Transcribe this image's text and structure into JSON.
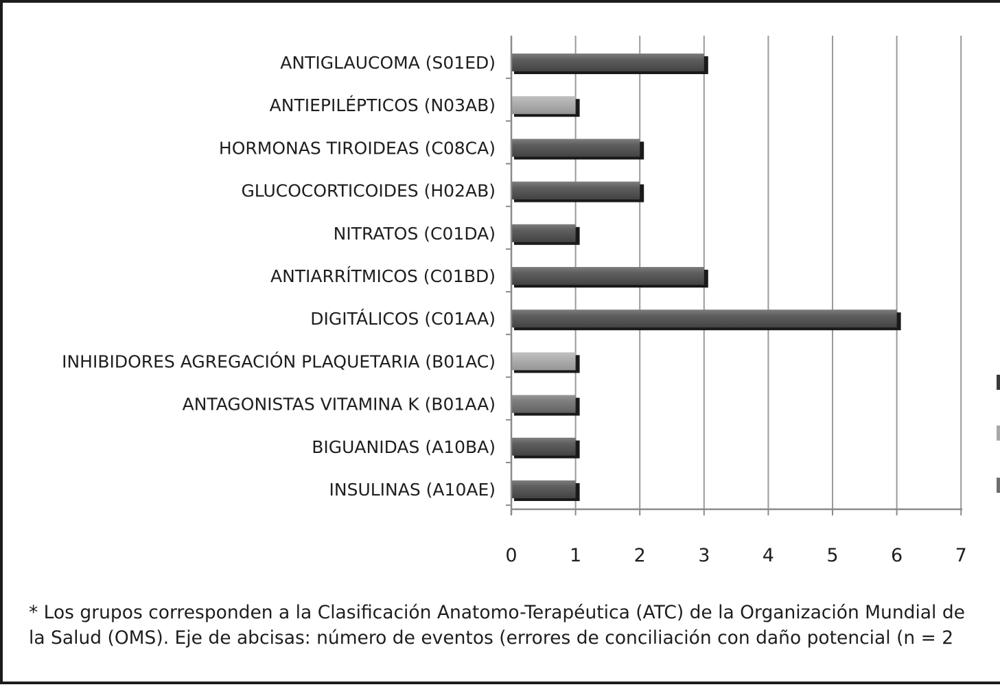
{
  "chart_data": {
    "type": "bar",
    "orientation": "horizontal",
    "categories": [
      "ANTIGLAUCOMA (S01ED)",
      "ANTIEPILÉPTICOS (N03AB)",
      "HORMONAS TIROIDEAS (C08CA)",
      "GLUCOCORTICOIDES (H02AB)",
      "NITRATOS (C01DA)",
      "ANTIARRÍTMICOS (C01BD)",
      "DIGITÁLICOS (C01AA)",
      "INHIBIDORES AGREGACIÓN PLAQUETARIA (B01AC)",
      "ANTAGONISTAS VITAMINA K (B01AA)",
      "BIGUANIDAS (A10BA)",
      "INSULINAS (A10AE)"
    ],
    "values": [
      3,
      1,
      2,
      2,
      1,
      3,
      6,
      1,
      1,
      1,
      1
    ],
    "bar_colors": [
      "#4b4b4b",
      "#a8a8a8",
      "#4b4b4b",
      "#4b4b4b",
      "#4b4b4b",
      "#4b4b4b",
      "#4b4b4b",
      "#a8a8a8",
      "#6e6e6e",
      "#4b4b4b",
      "#4b4b4b"
    ],
    "xlim": [
      0,
      7
    ],
    "xticks": [
      "0",
      "1",
      "2",
      "3",
      "4",
      "5",
      "6",
      "7"
    ],
    "grid": true,
    "legend_position": "right",
    "legend_swatches": [
      "#3a3a3a",
      "#a8a8a8",
      "#6e6e6e"
    ]
  },
  "footnote": {
    "line1": "* Los grupos corresponden a la Clasificación Anatomo-Terapéutica (ATC) de la Organización Mundial de",
    "line2": "la Salud (OMS). Eje de abcisas: número de eventos (errores de conciliación con daño potencial (n = 2"
  }
}
